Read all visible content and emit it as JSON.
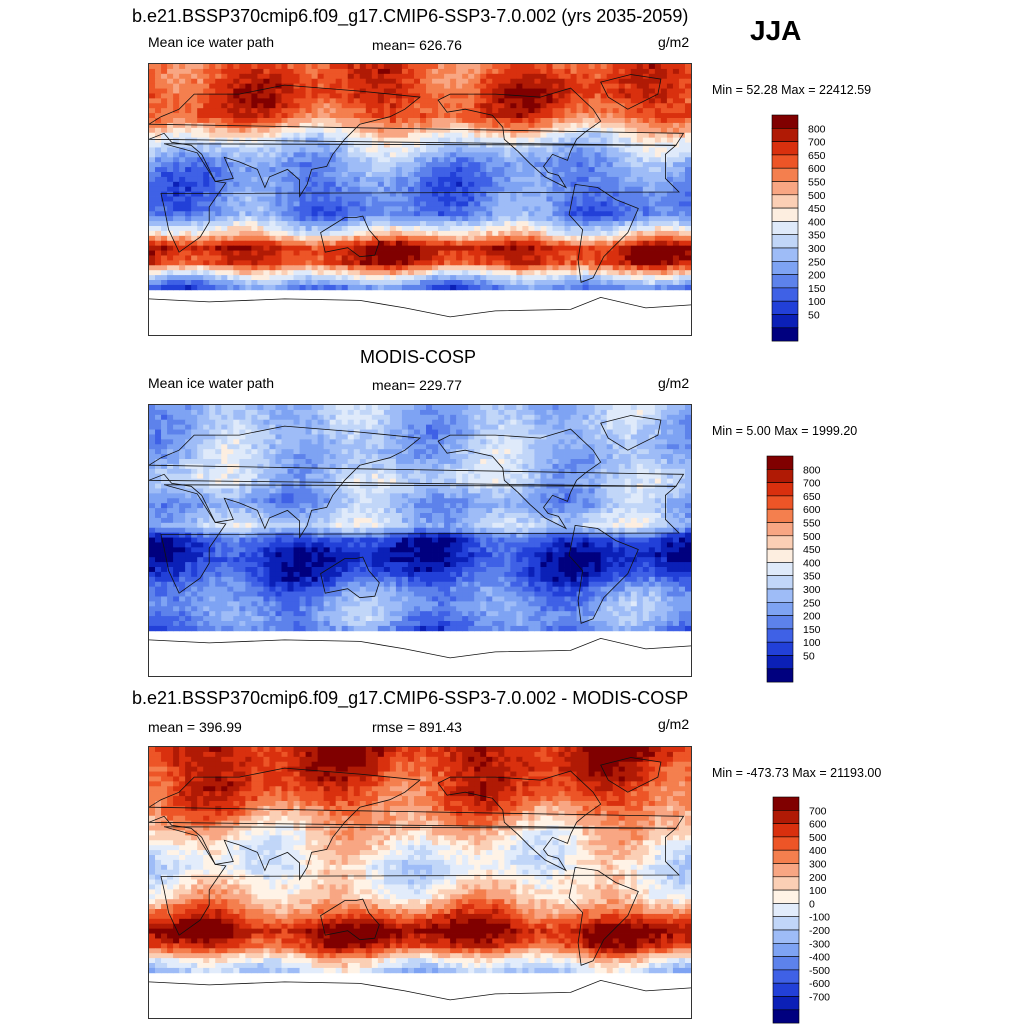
{
  "season": "JJA",
  "units": "g/m2",
  "palettes": {
    "abs": [
      "#800000",
      "#b01a05",
      "#d9300e",
      "#ed5527",
      "#f47f4e",
      "#f8a683",
      "#fbcfb5",
      "#fdeee0",
      "#dfeafa",
      "#c1d6f8",
      "#9ebcf7",
      "#7ea3f3",
      "#5d82eb",
      "#3f61e6",
      "#2240d8",
      "#0b20b7",
      "#00007f"
    ],
    "diff": [
      "#800000",
      "#b01a05",
      "#d9300e",
      "#ed5527",
      "#f47f4e",
      "#f8a683",
      "#fbcfb5",
      "#fff3e6",
      "#e2ecfb",
      "#c1d6f8",
      "#9ebcf7",
      "#7ea3f3",
      "#5d82eb",
      "#3f61e6",
      "#2240d8",
      "#0b20b7",
      "#00007f"
    ]
  },
  "chart_data": [
    {
      "type": "heatmap",
      "title": "b.e21.BSSP370cmip6.f09_g17.CMIP6-SSP3-7.0.002 (yrs 2035-2059)",
      "left_label": "Mean ice water path",
      "center_label": "mean= 626.76",
      "units": "g/m2",
      "minmax": "Min =  52.28 Max = 22412.59",
      "mean": 626.76,
      "min": 52.28,
      "max": 22412.59,
      "colorbar_labels": [
        "800",
        "700",
        "650",
        "600",
        "550",
        "500",
        "450",
        "400",
        "350",
        "300",
        "250",
        "200",
        "150",
        "100",
        "50"
      ],
      "zonal_profile": [
        {
          "lat": 90,
          "level": 3
        },
        {
          "lat": 70,
          "level": 2
        },
        {
          "lat": 55,
          "level": 3
        },
        {
          "lat": 40,
          "level": 8
        },
        {
          "lat": 25,
          "level": 11
        },
        {
          "lat": 10,
          "level": 12
        },
        {
          "lat": 0,
          "level": 12
        },
        {
          "lat": -10,
          "level": 12
        },
        {
          "lat": -22,
          "level": 7
        },
        {
          "lat": -32,
          "level": 1
        },
        {
          "lat": -42,
          "level": 2
        },
        {
          "lat": -52,
          "level": 9
        },
        {
          "lat": -58,
          "level": 12
        },
        {
          "lat": -62,
          "level": 13
        }
      ]
    },
    {
      "type": "heatmap",
      "title": "MODIS-COSP",
      "left_label": "Mean ice water path",
      "center_label": "mean= 229.77",
      "units": "g/m2",
      "minmax": "Min =   5.00 Max = 1999.20",
      "mean": 229.77,
      "min": 5.0,
      "max": 1999.2,
      "colorbar_labels": [
        "800",
        "700",
        "650",
        "600",
        "550",
        "500",
        "450",
        "400",
        "350",
        "300",
        "250",
        "200",
        "150",
        "100",
        "50"
      ],
      "zonal_profile": [
        {
          "lat": 90,
          "level": 10
        },
        {
          "lat": 70,
          "level": 10
        },
        {
          "lat": 55,
          "level": 10
        },
        {
          "lat": 40,
          "level": 9
        },
        {
          "lat": 25,
          "level": 11
        },
        {
          "lat": 10,
          "level": 9
        },
        {
          "lat": 0,
          "level": 14
        },
        {
          "lat": -10,
          "level": 15
        },
        {
          "lat": -22,
          "level": 14
        },
        {
          "lat": -32,
          "level": 12
        },
        {
          "lat": -42,
          "level": 11
        },
        {
          "lat": -52,
          "level": 11
        },
        {
          "lat": -58,
          "level": 12
        },
        {
          "lat": -62,
          "level": 13
        }
      ]
    },
    {
      "type": "heatmap",
      "title": "b.e21.BSSP370cmip6.f09_g17.CMIP6-SSP3-7.0.002 - MODIS-COSP",
      "left_label": "mean = 396.99",
      "center_label": "rmse = 891.43",
      "units": "g/m2",
      "minmax": "Min = -473.73 Max = 21193.00",
      "mean": 396.99,
      "rmse": 891.43,
      "min": -473.73,
      "max": 21193.0,
      "colorbar_labels": [
        "700",
        "600",
        "500",
        "400",
        "300",
        "200",
        "100",
        "0",
        "-100",
        "-200",
        "-300",
        "-400",
        "-500",
        "-600",
        "-700"
      ],
      "zonal_profile": [
        {
          "lat": 90,
          "level": 1
        },
        {
          "lat": 70,
          "level": 2
        },
        {
          "lat": 55,
          "level": 3
        },
        {
          "lat": 40,
          "level": 5
        },
        {
          "lat": 25,
          "level": 7
        },
        {
          "lat": 10,
          "level": 8
        },
        {
          "lat": 0,
          "level": 7
        },
        {
          "lat": -10,
          "level": 6
        },
        {
          "lat": -22,
          "level": 3
        },
        {
          "lat": -32,
          "level": 0
        },
        {
          "lat": -42,
          "level": 2
        },
        {
          "lat": -52,
          "level": 7
        },
        {
          "lat": -58,
          "level": 9
        },
        {
          "lat": -62,
          "level": 8
        }
      ]
    }
  ]
}
